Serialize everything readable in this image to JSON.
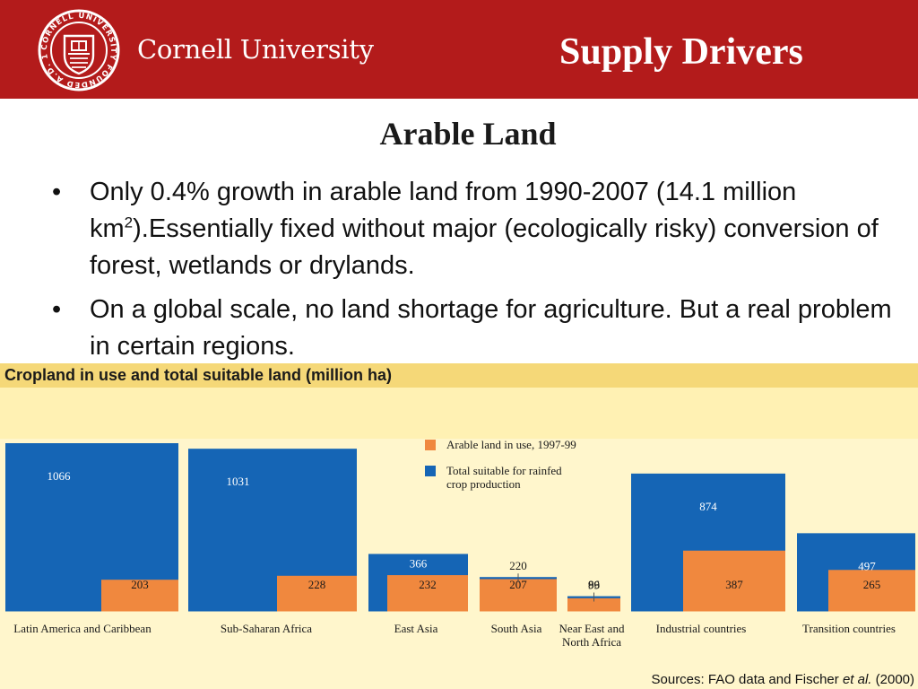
{
  "header": {
    "university_name": "Cornell University",
    "section_title": "Supply Drivers",
    "seal_text": "CORNELL UNIVERSITY FOUNDED A.D. 1865",
    "brand_color": "#b31b1b"
  },
  "slide": {
    "title": "Arable Land",
    "bullets": [
      {
        "pre": "Only 0.4% growth in arable land from 1990-2007 (14.1 million km",
        "sup": "2",
        "post": ").Essentially fixed without major (ecologically risky) conversion of forest, wetlands or drylands."
      },
      {
        "text": "On a global scale, no land shortage for agriculture. But a real problem in certain regions."
      }
    ]
  },
  "chart_panel": {
    "title": "Cropland in use and total suitable land (million ha)",
    "source_prefix": "Sources: FAO data and Fischer ",
    "source_italic": "et al.",
    "source_suffix": " (2000)"
  },
  "chart_data": {
    "type": "bar",
    "title": "Cropland in use and total suitable land (million ha)",
    "categories": [
      "Latin America and Caribbean",
      "Sub-Saharan Africa",
      "East Asia",
      "South Asia",
      "Near East and North Africa",
      "Industrial countries",
      "Transition countries"
    ],
    "series": [
      {
        "name": "Total suitable for rainfed crop production",
        "color": "#1565b5",
        "values": [
          1066,
          1031,
          366,
          220,
          99,
          874,
          497
        ]
      },
      {
        "name": "Arable land in use, 1997-99",
        "color": "#f0883e",
        "values": [
          203,
          228,
          232,
          207,
          86,
          387,
          265
        ]
      }
    ],
    "legend": [
      "Arable land in use, 1997-99",
      "Total suitable for rainfed crop production"
    ],
    "legend_placement": "top-center",
    "ylim": [
      0,
      1066
    ],
    "grid": false,
    "xlabel": "",
    "ylabel": ""
  }
}
